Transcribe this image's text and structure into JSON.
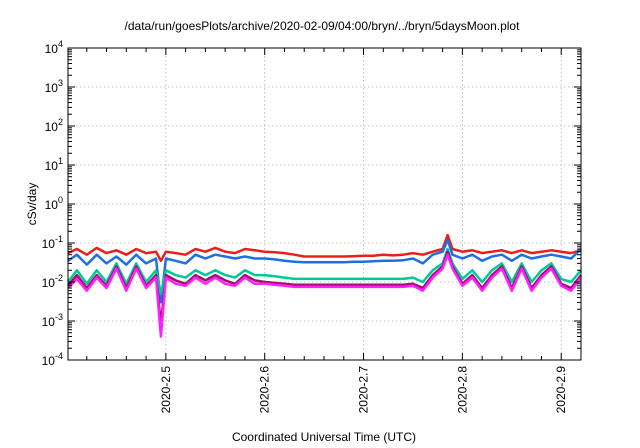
{
  "chart_data": {
    "type": "line",
    "title": "/data/run/goesPlots/archive/2020-02-09/04:00/bryn/../bryn/5daysMoon.plot",
    "xlabel": "Coordinated Universal Time (UTC)",
    "ylabel": "cSv/day",
    "y_scale": "log",
    "ylim": [
      0.0001,
      10000
    ],
    "xlim": [
      2020.401,
      2020.92
    ],
    "x_ticks": [
      {
        "value": 2020.5,
        "label": "2020-2.5"
      },
      {
        "value": 2020.6,
        "label": "2020-2.6"
      },
      {
        "value": 2020.7,
        "label": "2020-2.7"
      },
      {
        "value": 2020.8,
        "label": "2020-2.8"
      },
      {
        "value": 2020.9,
        "label": "2020-2.9"
      }
    ],
    "y_ticks": [
      {
        "value": 0.0001,
        "base": "10",
        "exp": "-4"
      },
      {
        "value": 0.001,
        "base": "10",
        "exp": "-3"
      },
      {
        "value": 0.01,
        "base": "10",
        "exp": "-2"
      },
      {
        "value": 0.1,
        "base": "10",
        "exp": "-1"
      },
      {
        "value": 1,
        "base": "10",
        "exp": "0"
      },
      {
        "value": 10,
        "base": "10",
        "exp": "1"
      },
      {
        "value": 100,
        "base": "10",
        "exp": "2"
      },
      {
        "value": 1000,
        "base": "10",
        "exp": "3"
      },
      {
        "value": 10000,
        "base": "10",
        "exp": "4"
      }
    ],
    "grid": true,
    "colors": [
      "#e8201c",
      "#1e6fe0",
      "#00c896",
      "#a0106e",
      "#ff20ff"
    ],
    "series": [
      {
        "color": "#e8201c",
        "x": [
          2020.401,
          2020.41,
          2020.42,
          2020.43,
          2020.44,
          2020.45,
          2020.46,
          2020.47,
          2020.48,
          2020.49,
          2020.495,
          2020.5,
          2020.51,
          2020.52,
          2020.53,
          2020.54,
          2020.55,
          2020.56,
          2020.57,
          2020.58,
          2020.59,
          2020.6,
          2020.61,
          2020.62,
          2020.63,
          2020.64,
          2020.65,
          2020.66,
          2020.67,
          2020.68,
          2020.69,
          2020.7,
          2020.71,
          2020.72,
          2020.73,
          2020.74,
          2020.75,
          2020.76,
          2020.77,
          2020.78,
          2020.785,
          2020.79,
          2020.8,
          2020.81,
          2020.82,
          2020.83,
          2020.84,
          2020.85,
          2020.86,
          2020.87,
          2020.88,
          2020.89,
          2020.9,
          2020.91,
          2020.92
        ],
        "y": [
          0.055,
          0.07,
          0.05,
          0.075,
          0.055,
          0.065,
          0.05,
          0.07,
          0.055,
          0.06,
          0.035,
          0.06,
          0.055,
          0.05,
          0.07,
          0.06,
          0.075,
          0.06,
          0.055,
          0.07,
          0.065,
          0.06,
          0.058,
          0.055,
          0.05,
          0.045,
          0.045,
          0.045,
          0.045,
          0.045,
          0.046,
          0.047,
          0.047,
          0.05,
          0.048,
          0.05,
          0.055,
          0.05,
          0.06,
          0.07,
          0.16,
          0.07,
          0.06,
          0.065,
          0.055,
          0.06,
          0.065,
          0.055,
          0.065,
          0.055,
          0.06,
          0.065,
          0.06,
          0.055,
          0.065
        ]
      },
      {
        "color": "#1e6fe0",
        "x": [
          2020.401,
          2020.41,
          2020.42,
          2020.43,
          2020.44,
          2020.45,
          2020.46,
          2020.47,
          2020.48,
          2020.49,
          2020.495,
          2020.5,
          2020.51,
          2020.52,
          2020.53,
          2020.54,
          2020.55,
          2020.56,
          2020.57,
          2020.58,
          2020.59,
          2020.6,
          2020.61,
          2020.62,
          2020.63,
          2020.64,
          2020.65,
          2020.66,
          2020.67,
          2020.68,
          2020.69,
          2020.7,
          2020.71,
          2020.72,
          2020.73,
          2020.74,
          2020.75,
          2020.76,
          2020.77,
          2020.78,
          2020.785,
          2020.79,
          2020.8,
          2020.81,
          2020.82,
          2020.83,
          2020.84,
          2020.85,
          2020.86,
          2020.87,
          2020.88,
          2020.89,
          2020.9,
          2020.91,
          2020.92
        ],
        "y": [
          0.035,
          0.05,
          0.028,
          0.05,
          0.03,
          0.045,
          0.028,
          0.05,
          0.03,
          0.04,
          0.003,
          0.04,
          0.035,
          0.03,
          0.05,
          0.04,
          0.05,
          0.045,
          0.04,
          0.045,
          0.04,
          0.04,
          0.038,
          0.035,
          0.033,
          0.032,
          0.032,
          0.032,
          0.032,
          0.032,
          0.033,
          0.033,
          0.034,
          0.035,
          0.035,
          0.036,
          0.04,
          0.03,
          0.05,
          0.06,
          0.12,
          0.05,
          0.04,
          0.05,
          0.035,
          0.045,
          0.05,
          0.035,
          0.05,
          0.04,
          0.045,
          0.05,
          0.045,
          0.04,
          0.07
        ]
      },
      {
        "color": "#00c896",
        "x": [
          2020.401,
          2020.41,
          2020.42,
          2020.43,
          2020.44,
          2020.45,
          2020.46,
          2020.47,
          2020.48,
          2020.49,
          2020.495,
          2020.5,
          2020.51,
          2020.52,
          2020.53,
          2020.54,
          2020.55,
          2020.56,
          2020.57,
          2020.58,
          2020.59,
          2020.6,
          2020.61,
          2020.62,
          2020.63,
          2020.64,
          2020.65,
          2020.66,
          2020.67,
          2020.68,
          2020.69,
          2020.7,
          2020.71,
          2020.72,
          2020.73,
          2020.74,
          2020.75,
          2020.76,
          2020.77,
          2020.78,
          2020.785,
          2020.79,
          2020.8,
          2020.81,
          2020.82,
          2020.83,
          2020.84,
          2020.85,
          2020.86,
          2020.87,
          2020.88,
          2020.89,
          2020.9,
          2020.91,
          2020.92
        ],
        "y": [
          0.01,
          0.02,
          0.009,
          0.02,
          0.01,
          0.03,
          0.009,
          0.03,
          0.01,
          0.02,
          0.005,
          0.02,
          0.015,
          0.013,
          0.02,
          0.015,
          0.02,
          0.015,
          0.013,
          0.02,
          0.015,
          0.015,
          0.014,
          0.013,
          0.012,
          0.012,
          0.012,
          0.012,
          0.012,
          0.012,
          0.012,
          0.012,
          0.012,
          0.012,
          0.012,
          0.012,
          0.013,
          0.01,
          0.02,
          0.03,
          0.07,
          0.03,
          0.012,
          0.02,
          0.01,
          0.02,
          0.03,
          0.01,
          0.03,
          0.01,
          0.02,
          0.03,
          0.012,
          0.01,
          0.02
        ]
      },
      {
        "color": "#a0106e",
        "x": [
          2020.401,
          2020.41,
          2020.42,
          2020.43,
          2020.44,
          2020.45,
          2020.46,
          2020.47,
          2020.48,
          2020.49,
          2020.495,
          2020.5,
          2020.51,
          2020.52,
          2020.53,
          2020.54,
          2020.55,
          2020.56,
          2020.57,
          2020.58,
          2020.59,
          2020.6,
          2020.61,
          2020.62,
          2020.63,
          2020.64,
          2020.65,
          2020.66,
          2020.67,
          2020.68,
          2020.69,
          2020.7,
          2020.71,
          2020.72,
          2020.73,
          2020.74,
          2020.75,
          2020.76,
          2020.77,
          2020.78,
          2020.785,
          2020.79,
          2020.8,
          2020.81,
          2020.82,
          2020.83,
          2020.84,
          2020.85,
          2020.86,
          2020.87,
          2020.88,
          2020.89,
          2020.9,
          2020.91,
          2020.92
        ],
        "y": [
          0.008,
          0.015,
          0.007,
          0.015,
          0.008,
          0.025,
          0.007,
          0.025,
          0.008,
          0.015,
          0.0008,
          0.015,
          0.011,
          0.009,
          0.015,
          0.011,
          0.015,
          0.011,
          0.009,
          0.015,
          0.011,
          0.01,
          0.0095,
          0.009,
          0.0085,
          0.0085,
          0.0085,
          0.0085,
          0.0085,
          0.0085,
          0.0085,
          0.0085,
          0.0085,
          0.0085,
          0.0085,
          0.0085,
          0.009,
          0.007,
          0.015,
          0.025,
          0.06,
          0.025,
          0.009,
          0.015,
          0.007,
          0.015,
          0.025,
          0.007,
          0.025,
          0.007,
          0.015,
          0.025,
          0.009,
          0.007,
          0.015
        ]
      },
      {
        "color": "#ff20ff",
        "x": [
          2020.401,
          2020.41,
          2020.42,
          2020.43,
          2020.44,
          2020.45,
          2020.46,
          2020.47,
          2020.48,
          2020.49,
          2020.495,
          2020.5,
          2020.51,
          2020.52,
          2020.53,
          2020.54,
          2020.55,
          2020.56,
          2020.57,
          2020.58,
          2020.59,
          2020.6,
          2020.61,
          2020.62,
          2020.63,
          2020.64,
          2020.65,
          2020.66,
          2020.67,
          2020.68,
          2020.69,
          2020.7,
          2020.71,
          2020.72,
          2020.73,
          2020.74,
          2020.75,
          2020.76,
          2020.77,
          2020.78,
          2020.785,
          2020.79,
          2020.8,
          2020.81,
          2020.82,
          2020.83,
          2020.84,
          2020.85,
          2020.86,
          2020.87,
          2020.88,
          2020.89,
          2020.9,
          2020.91,
          2020.92
        ],
        "y": [
          0.007,
          0.012,
          0.006,
          0.013,
          0.007,
          0.022,
          0.006,
          0.022,
          0.007,
          0.013,
          0.0004,
          0.013,
          0.009,
          0.008,
          0.013,
          0.009,
          0.013,
          0.009,
          0.008,
          0.013,
          0.009,
          0.009,
          0.0085,
          0.008,
          0.0075,
          0.0075,
          0.0075,
          0.0075,
          0.0075,
          0.0075,
          0.0075,
          0.0075,
          0.0075,
          0.0075,
          0.0075,
          0.0075,
          0.008,
          0.006,
          0.013,
          0.022,
          0.05,
          0.022,
          0.008,
          0.013,
          0.006,
          0.013,
          0.022,
          0.006,
          0.022,
          0.006,
          0.013,
          0.022,
          0.008,
          0.006,
          0.013
        ]
      }
    ]
  }
}
